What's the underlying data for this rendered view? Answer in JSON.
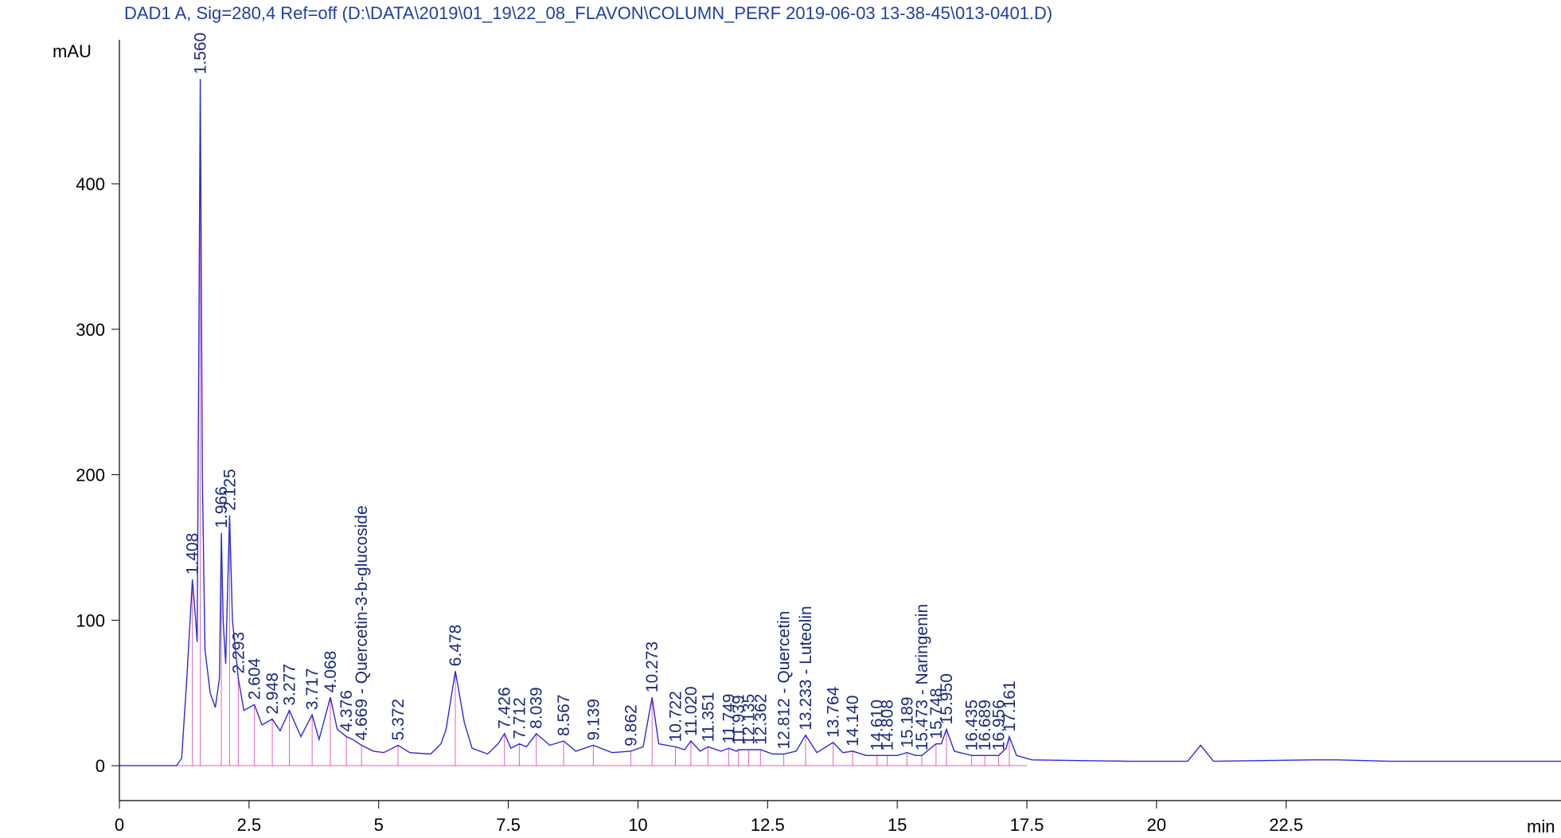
{
  "chart_data": {
    "type": "line",
    "title": "DAD1 A, Sig=280,4 Ref=off (D:\\DATA\\2019\\01_19\\22_08_FLAVON\\COLUMN_PERF 2019-06-03 13-38-45\\013-0401.D)",
    "y_label": "mAU",
    "x_label": "min",
    "color": "#2b2bd6",
    "marker_color": "#e060c0",
    "xlim": [
      0,
      27.8
    ],
    "ylim": [
      -24,
      499
    ],
    "xticks": [
      0,
      2.5,
      5,
      7.5,
      10,
      12.5,
      15,
      17.5,
      20,
      22.5
    ],
    "yticks": [
      0,
      100,
      200,
      300,
      400
    ],
    "x": [
      0,
      1.1,
      1.2,
      1.3,
      1.408,
      1.47,
      1.5,
      1.53,
      1.56,
      1.6,
      1.65,
      1.75,
      1.85,
      1.93,
      1.966,
      2.0,
      2.05,
      2.125,
      2.18,
      2.293,
      2.4,
      2.604,
      2.75,
      2.948,
      3.1,
      3.277,
      3.5,
      3.717,
      3.85,
      4.068,
      4.2,
      4.376,
      4.5,
      4.669,
      4.9,
      5.1,
      5.372,
      5.6,
      6.0,
      6.2,
      6.3,
      6.478,
      6.65,
      6.8,
      7.1,
      7.3,
      7.426,
      7.55,
      7.712,
      7.85,
      8.039,
      8.3,
      8.567,
      8.8,
      9.139,
      9.5,
      9.862,
      10.1,
      10.273,
      10.4,
      10.722,
      10.9,
      11.02,
      11.2,
      11.351,
      11.6,
      11.749,
      11.9,
      11.939,
      12.135,
      12.362,
      12.6,
      12.812,
      13.05,
      13.233,
      13.45,
      13.764,
      13.95,
      14.14,
      14.4,
      14.61,
      14.808,
      15.0,
      15.189,
      15.35,
      15.473,
      15.748,
      15.85,
      15.95,
      16.1,
      16.435,
      16.689,
      16.956,
      17.1,
      17.161,
      17.3,
      17.6,
      19.5,
      20.6,
      20.85,
      21.1,
      23.0,
      23.5,
      24.5,
      27.8
    ],
    "values": [
      0,
      0,
      5,
      60,
      128,
      100,
      85,
      280,
      472,
      200,
      80,
      50,
      40,
      60,
      160,
      100,
      70,
      172,
      100,
      60,
      38,
      42,
      28,
      32,
      24,
      38,
      20,
      35,
      18,
      47,
      25,
      20,
      18,
      14,
      10,
      9,
      14,
      9,
      8,
      15,
      25,
      65,
      30,
      12,
      8,
      15,
      22,
      12,
      15,
      13,
      22,
      14,
      17,
      10,
      14,
      9,
      10,
      13,
      47,
      15,
      13,
      11,
      17,
      10,
      13,
      10,
      12,
      10,
      11,
      11,
      11,
      8,
      8,
      10,
      21,
      9,
      16,
      9,
      10,
      7,
      7,
      7,
      7,
      9,
      7,
      7,
      15,
      15,
      25,
      10,
      7,
      7,
      7,
      12,
      20,
      7,
      4,
      3,
      3,
      14,
      3,
      4,
      4,
      3,
      3
    ],
    "peaks": [
      {
        "value": 1.408,
        "label": "1.408"
      },
      {
        "value": 1.56,
        "label": "1.560"
      },
      {
        "value": 1.966,
        "label": "1.966"
      },
      {
        "value": 2.125,
        "label": "2.125"
      },
      {
        "value": 2.293,
        "label": "2.293"
      },
      {
        "value": 2.604,
        "label": "2.604"
      },
      {
        "value": 2.948,
        "label": "2.948"
      },
      {
        "value": 3.277,
        "label": "3.277"
      },
      {
        "value": 3.717,
        "label": "3.717"
      },
      {
        "value": 4.068,
        "label": "4.068"
      },
      {
        "value": 4.376,
        "label": "4.376"
      },
      {
        "value": 4.669,
        "label": "4.669 - Quercetin-3-b-glucoside"
      },
      {
        "value": 5.372,
        "label": "5.372"
      },
      {
        "value": 6.478,
        "label": "6.478"
      },
      {
        "value": 7.426,
        "label": "7.426"
      },
      {
        "value": 7.712,
        "label": "7.712"
      },
      {
        "value": 8.039,
        "label": "8.039"
      },
      {
        "value": 8.567,
        "label": "8.567"
      },
      {
        "value": 9.139,
        "label": "9.139"
      },
      {
        "value": 9.862,
        "label": "9.862"
      },
      {
        "value": 10.273,
        "label": "10.273"
      },
      {
        "value": 10.722,
        "label": "10.722"
      },
      {
        "value": 11.02,
        "label": "11.020"
      },
      {
        "value": 11.351,
        "label": "11.351"
      },
      {
        "value": 11.749,
        "label": "11.749"
      },
      {
        "value": 11.939,
        "label": "11.939"
      },
      {
        "value": 12.135,
        "label": "12.135"
      },
      {
        "value": 12.362,
        "label": "12.362"
      },
      {
        "value": 12.812,
        "label": "12.812 - Quercetin"
      },
      {
        "value": 13.233,
        "label": "13.233 - Luteolin"
      },
      {
        "value": 13.764,
        "label": "13.764"
      },
      {
        "value": 14.14,
        "label": "14.140"
      },
      {
        "value": 14.61,
        "label": "14.610"
      },
      {
        "value": 14.808,
        "label": "14.808"
      },
      {
        "value": 15.189,
        "label": "15.189"
      },
      {
        "value": 15.473,
        "label": "15.473 - Naringenin"
      },
      {
        "value": 15.748,
        "label": "15.748"
      },
      {
        "value": 15.95,
        "label": "15.950"
      },
      {
        "value": 16.435,
        "label": "16.435"
      },
      {
        "value": 16.689,
        "label": "16.689"
      },
      {
        "value": 16.956,
        "label": "16.956"
      },
      {
        "value": 17.161,
        "label": "17.161"
      }
    ]
  }
}
